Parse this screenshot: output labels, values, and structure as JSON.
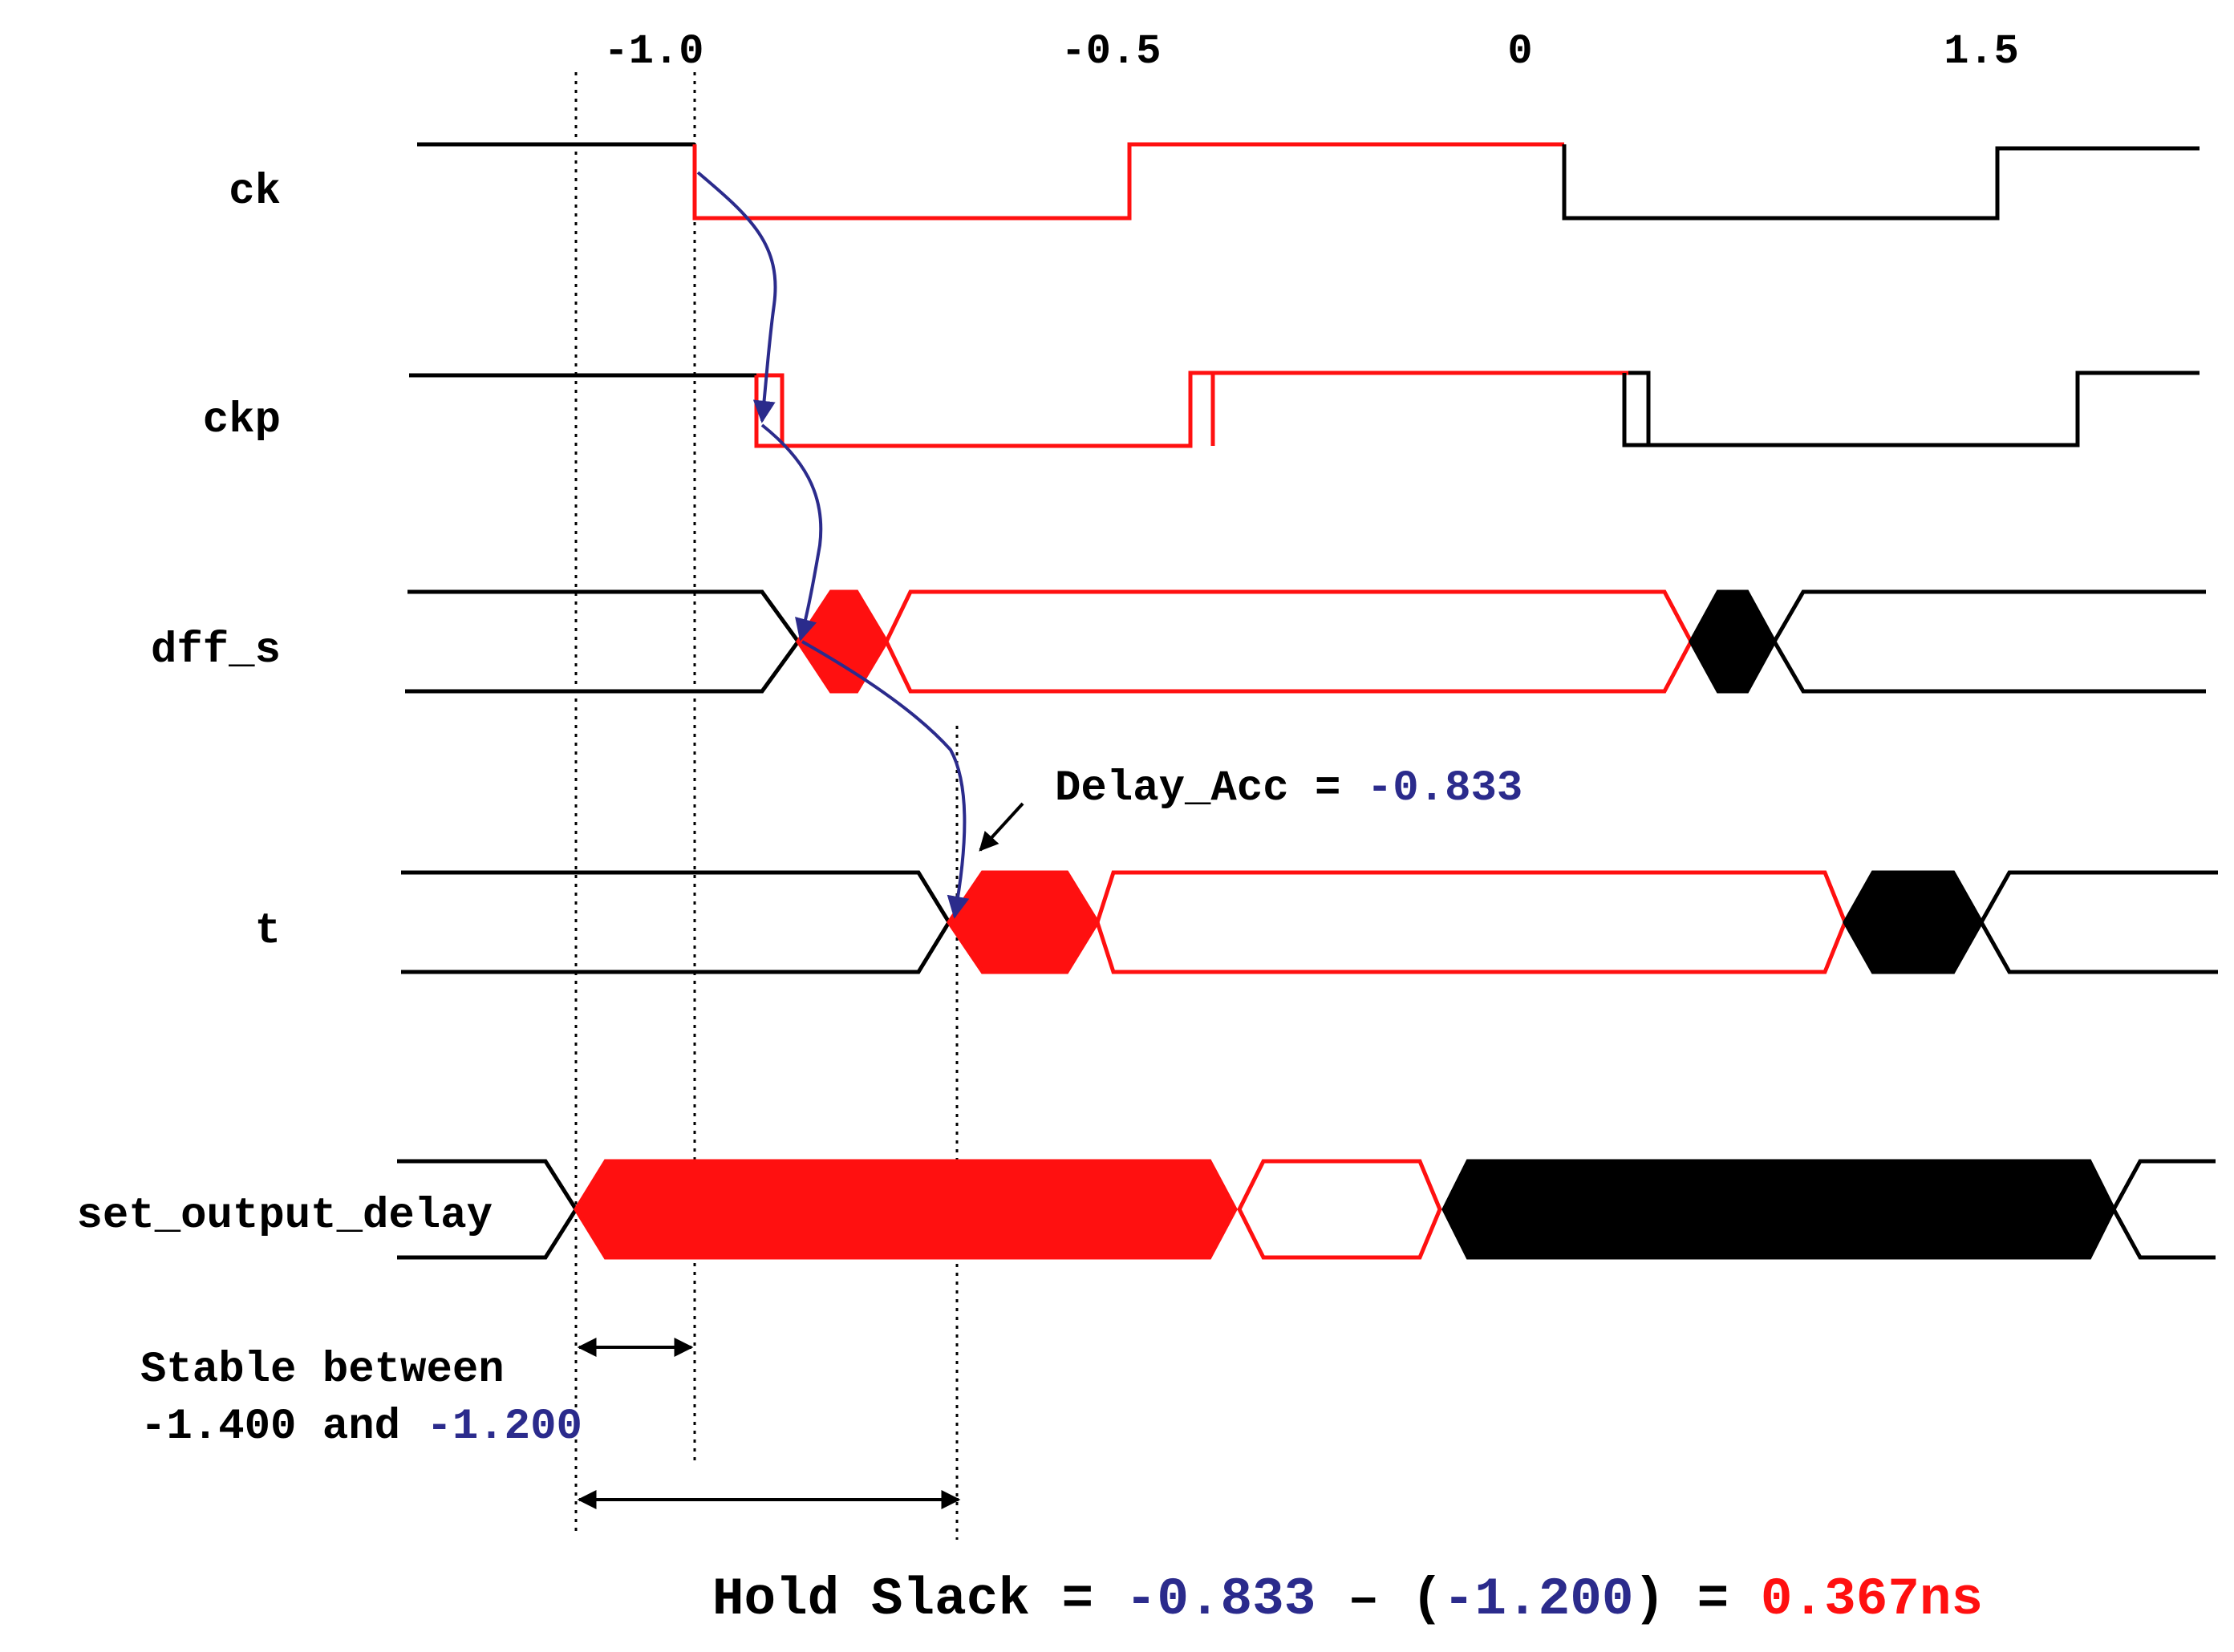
{
  "axis": {
    "ticks": [
      "-1.0",
      "-0.5",
      "0",
      "1.5"
    ]
  },
  "signals": {
    "ck": "ck",
    "ckp": "ckp",
    "dff_s": "dff_s",
    "t": "t",
    "set_output_delay": "set_output_delay"
  },
  "delay_annotation": {
    "label": "Delay_Acc = ",
    "value": "-0.833"
  },
  "stable_note": {
    "line1": "Stable between",
    "line2_prefix": "-1.400 and ",
    "line2_value": "-1.200"
  },
  "hold_slack": {
    "prefix": "Hold Slack = ",
    "delay": "-0.833",
    "minus_open": " – (",
    "stable": "-1.200",
    "close_eq": ") = ",
    "result": "0.367ns"
  },
  "colors": {
    "active": "#ff1010",
    "inactive": "#000000",
    "annotation": "#2b2b8c"
  }
}
